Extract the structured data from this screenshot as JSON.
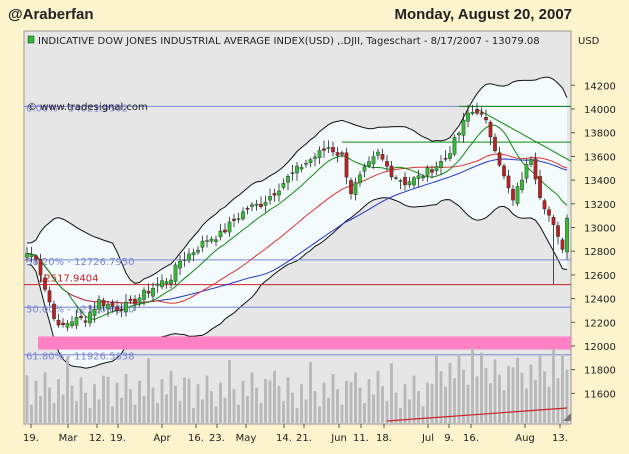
{
  "header": {
    "user": "@Araberfan",
    "date": "Monday, August 20, 2007"
  },
  "colors": {
    "background": "#fdf3cc",
    "plot": "#e6e6e6",
    "bollinger_fill": "#f4fbfd",
    "up_candle": "#33bb33",
    "down_candle": "#bb2222",
    "ma_fast": "#118811",
    "ma_mid": "#dd3333",
    "ma_slow": "#2233cc",
    "fib_line": "#7a86d6",
    "support_line": "#cc2222",
    "highlight_band": "#ff80c4",
    "volume": "#b8b8b8"
  },
  "chart_data": {
    "type": "candlestick",
    "title": "INDICATIVE DOW JONES INDUSTRIAL AVERAGE INDEX(USD) ,.DJII, Tageschart - 8/17/2007 - 13079.08",
    "watermark": "© www.tradesignal.com",
    "ylabel": "USD",
    "ylim": [
      11400,
      14400
    ],
    "yticks": [
      11600,
      11800,
      12000,
      12200,
      12400,
      12600,
      12800,
      13000,
      13200,
      13400,
      13600,
      13800,
      14000,
      14200
    ],
    "xticks": [
      "19.",
      "Mar",
      "12.",
      "19.",
      "Apr",
      "16.",
      "23.",
      "May",
      "14.",
      "21.",
      "Jun",
      "11.",
      "18.",
      "Jul",
      "9.",
      "16.",
      "Aug",
      "13."
    ],
    "fib_levels": [
      {
        "label": "0.00% - 14021.9502",
        "value": 14021.95
      },
      {
        "label": "38.20% - 12726.7950",
        "value": 12726.8
      },
      {
        "label": "50.00% - 12326.6810",
        "value": 12326.68
      },
      {
        "label": "61.80% - 11926.5838",
        "value": 11926.58
      }
    ],
    "support_line": {
      "label": "12517.9404",
      "value": 12517.94
    },
    "highlight_band": [
      11970,
      12080
    ],
    "close_waypoints": [
      [
        0,
        12780
      ],
      [
        2,
        12760
      ],
      [
        4,
        12480
      ],
      [
        7,
        12150
      ],
      [
        10,
        12220
      ],
      [
        13,
        12230
      ],
      [
        16,
        12380
      ],
      [
        20,
        12320
      ],
      [
        23,
        12350
      ],
      [
        26,
        12440
      ],
      [
        29,
        12520
      ],
      [
        32,
        12580
      ],
      [
        34,
        12720
      ],
      [
        37,
        12800
      ],
      [
        40,
        12900
      ],
      [
        43,
        12940
      ],
      [
        46,
        13060
      ],
      [
        49,
        13160
      ],
      [
        52,
        13200
      ],
      [
        55,
        13300
      ],
      [
        58,
        13420
      ],
      [
        61,
        13520
      ],
      [
        64,
        13600
      ],
      [
        67,
        13680
      ],
      [
        70,
        13600
      ],
      [
        72,
        13300
      ],
      [
        75,
        13480
      ],
      [
        78,
        13620
      ],
      [
        81,
        13460
      ],
      [
        84,
        13380
      ],
      [
        87,
        13420
      ],
      [
        90,
        13500
      ],
      [
        93,
        13580
      ],
      [
        96,
        13800
      ],
      [
        98,
        13960
      ],
      [
        100,
        13990
      ],
      [
        102,
        13880
      ],
      [
        104,
        13680
      ],
      [
        106,
        13420
      ],
      [
        108,
        13220
      ],
      [
        110,
        13420
      ],
      [
        112,
        13600
      ],
      [
        114,
        13280
      ],
      [
        116,
        13100
      ],
      [
        118,
        12900
      ],
      [
        119,
        12840
      ],
      [
        120,
        13079
      ]
    ]
  }
}
